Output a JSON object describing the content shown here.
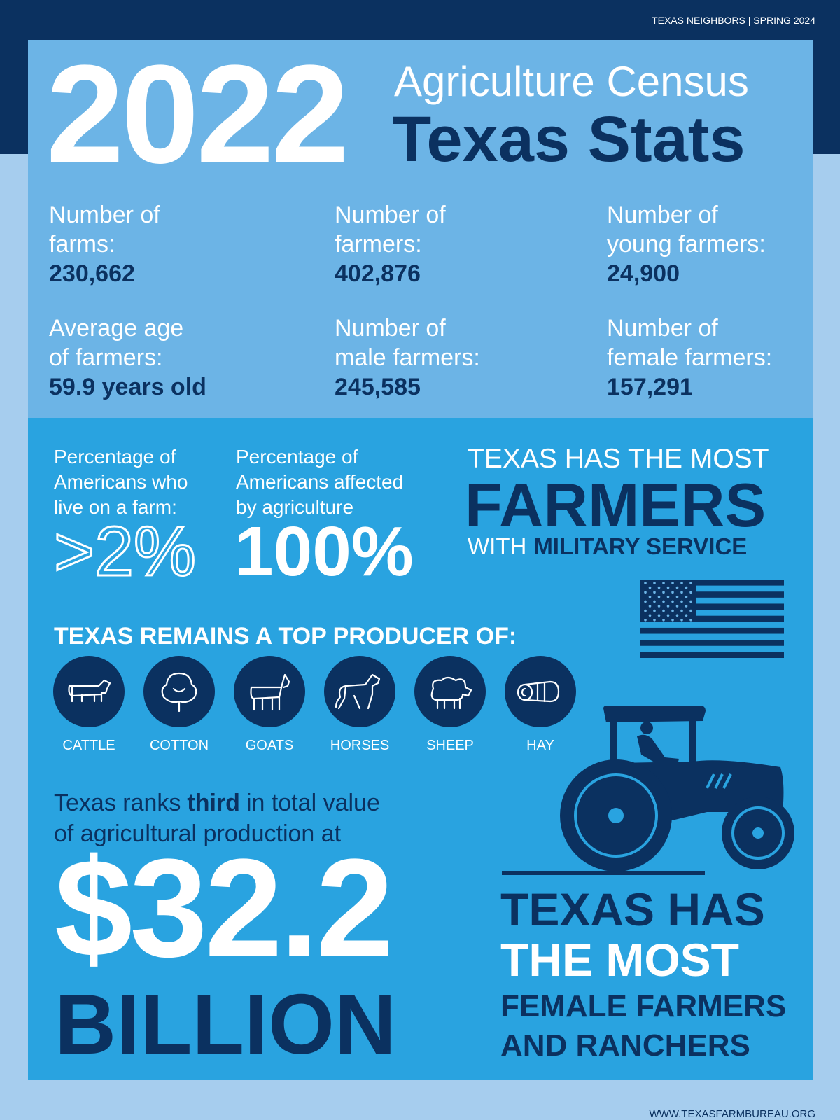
{
  "header": {
    "issue": "TEXAS NEIGHBORS | SPRING 2024"
  },
  "title": {
    "year": "2022",
    "line1": "Agriculture Census",
    "line2": "Texas Stats"
  },
  "stats": [
    {
      "label": [
        "Number of",
        "farms:"
      ],
      "value": "230,662"
    },
    {
      "label": [
        "Number of",
        "farmers:"
      ],
      "value": "402,876"
    },
    {
      "label": [
        "Number of",
        "young farmers:"
      ],
      "value": "24,900"
    },
    {
      "label": [
        "Average age",
        "of farmers:"
      ],
      "value": "59.9 years old"
    },
    {
      "label": [
        "Number of",
        "male farmers:"
      ],
      "value": "245,585"
    },
    {
      "label": [
        "Number of",
        "female farmers:"
      ],
      "value": "157,291"
    }
  ],
  "percentages": [
    {
      "label": [
        "Percentage of",
        "Americans who",
        "live on a farm:"
      ],
      "value": ">2%"
    },
    {
      "label": [
        "Percentage of",
        "Americans affected",
        "by agriculture"
      ],
      "value": "100%"
    }
  ],
  "military": {
    "line1": "TEXAS HAS THE MOST",
    "line2": "FARMERS",
    "line3a": "WITH",
    "line3b": "MILITARY SERVICE"
  },
  "producers": {
    "heading": "TEXAS REMAINS A TOP PRODUCER OF:",
    "items": [
      "CATTLE",
      "COTTON",
      "GOATS",
      "HORSES",
      "SHEEP",
      "HAY"
    ]
  },
  "ranking": {
    "line1": [
      "Texas ranks",
      "third",
      "in total value"
    ],
    "line2": "of agricultural production at",
    "amount": "$32.2",
    "unit": "BILLION"
  },
  "female": {
    "lines": [
      "TEXAS HAS",
      "THE MOST",
      "FEMALE FARMERS",
      "AND RANCHERS"
    ]
  },
  "footer": {
    "url": "WWW.TEXASFARMBUREAU.ORG"
  }
}
